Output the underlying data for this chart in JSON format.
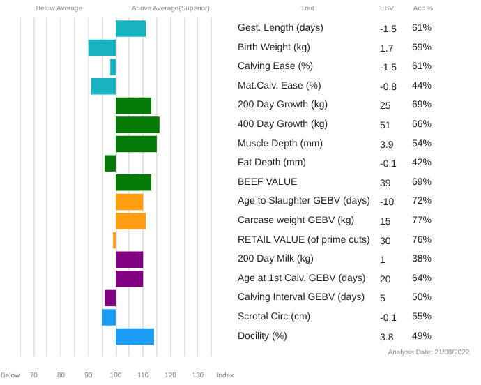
{
  "chart_data": [
    {
      "type": "bar",
      "orientation": "horizontal",
      "ylabel": "Trait",
      "categories": [
        "Gest. Length (days)",
        "Birth Weight (kg)",
        "Calving Ease (%)",
        "Mat.Calv. Ease (%)",
        "200 Day Growth (kg)",
        "400 Day Growth (kg)",
        "Muscle Depth (mm)",
        "Fat Depth (mm)",
        "BEEF VALUE",
        "Age to Slaughter GEBV (days)",
        "Carcase weight GEBV (kg)",
        "RETAIL VALUE (of prime cuts)",
        "200 Day Milk (kg)",
        "Age at 1st Calv. GEBV (days)",
        "Calving Interval GEBV (days)",
        "Scrotal Circ (cm)",
        "Docility (%)"
      ],
      "base": [
        100,
        100,
        100,
        100,
        100,
        100,
        100,
        100,
        100,
        100,
        100,
        100,
        100,
        100,
        100,
        100,
        100
      ],
      "values": [
        11,
        -10,
        -2,
        -9,
        13,
        16,
        15,
        -4,
        13,
        10,
        11,
        -1,
        10,
        10,
        -4,
        -5,
        14
      ],
      "colors": [
        "#17b3c1",
        "#17b3c1",
        "#17b3c1",
        "#17b3c1",
        "#067a06",
        "#067a06",
        "#067a06",
        "#067a06",
        "#067a06",
        "#ff9d13",
        "#ff9d13",
        "#ff9d13",
        "#800080",
        "#800080",
        "#800080",
        "#1a9cf5",
        "#1a9cf5"
      ],
      "xlim": [
        60,
        140
      ],
      "xticks": [
        {
          "value": 60,
          "label": "Below"
        },
        {
          "value": 65,
          "label": null
        },
        70,
        {
          "value": 75,
          "label": null
        },
        80,
        {
          "value": 85,
          "label": null
        },
        90,
        {
          "value": 95,
          "label": null
        },
        100,
        {
          "value": 105,
          "label": null
        },
        110,
        {
          "value": 115,
          "label": null
        },
        120,
        {
          "value": 125,
          "label": null
        },
        130,
        {
          "value": 135,
          "label": null
        },
        {
          "value": 140,
          "label": "Index"
        }
      ],
      "grid": "x",
      "tick_labels": "x",
      "annotations": [
        "Below Average",
        "Above Average(Superior)",
        "Analysis Date: 21/08/2022"
      ]
    },
    {
      "type": "other",
      "title": "EBV",
      "annotations": [
        "-1.5",
        "1.7",
        "-1.5",
        "-0.8",
        "25",
        "51",
        "3.9",
        "-0.1",
        "39",
        "-10",
        "15",
        "30",
        "1",
        "20",
        "5",
        "-0.1",
        "3.8"
      ]
    },
    {
      "type": "other",
      "title": "Acc %",
      "annotations": [
        "61%",
        "69%",
        "61%",
        "44%",
        "69%",
        "66%",
        "54%",
        "42%",
        "69%",
        "72%",
        "77%",
        "76%",
        "38%",
        "64%",
        "50%",
        "55%",
        "49%"
      ]
    }
  ]
}
